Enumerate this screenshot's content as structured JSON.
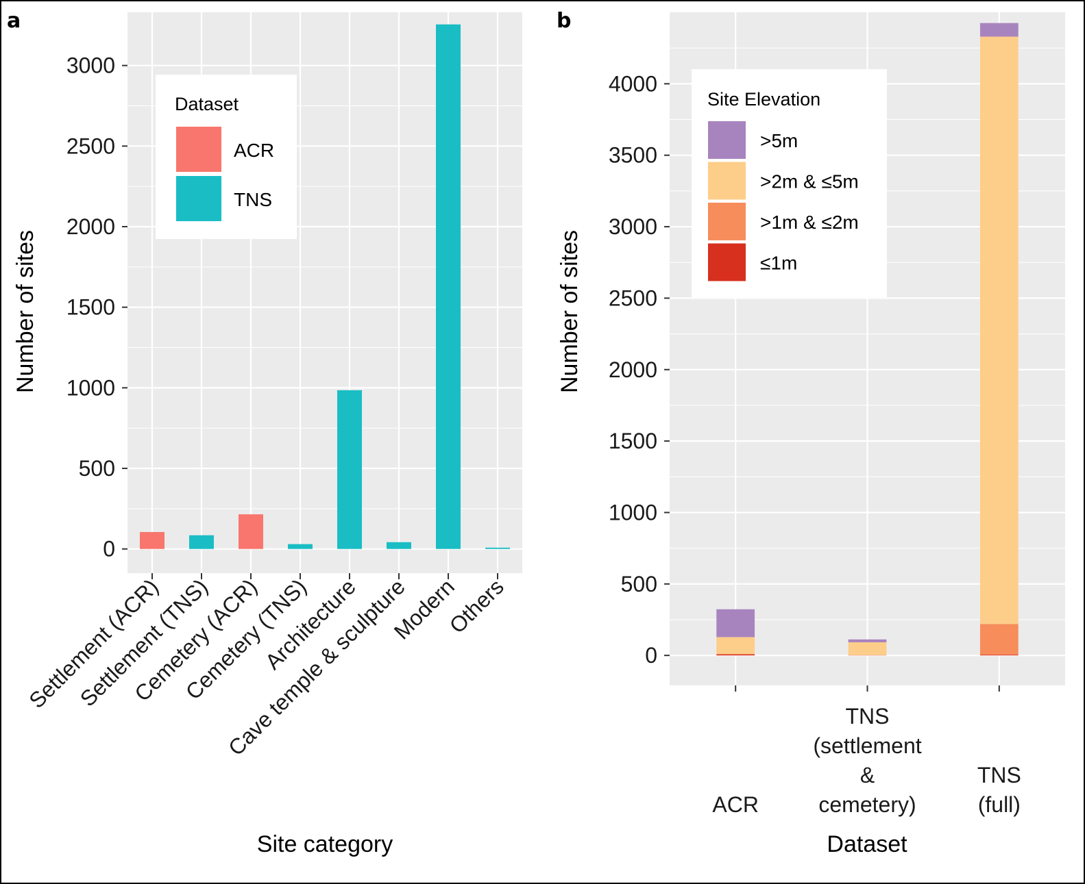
{
  "chart_data": [
    {
      "panel": "a",
      "type": "bar",
      "xlabel": "Site category",
      "ylabel": "Number of sites",
      "ylim": [
        -150,
        3330
      ],
      "yticks": [
        0,
        500,
        1000,
        1500,
        2000,
        2500,
        3000
      ],
      "categories": [
        "Settlement (ACR)",
        "Settlement (TNS)",
        "Cemetery (ACR)",
        "Cemetery (TNS)",
        "Architecture",
        "Cave temple & sculpture",
        "Modern",
        "Others"
      ],
      "values": [
        105,
        85,
        215,
        30,
        985,
        42,
        3255,
        8
      ],
      "datasets": [
        "ACR",
        "TNS",
        "ACR",
        "TNS",
        "TNS",
        "TNS",
        "TNS",
        "TNS"
      ],
      "legend": {
        "title": "Dataset",
        "items": [
          {
            "label": "ACR",
            "color": "#F8766D"
          },
          {
            "label": "TNS",
            "color": "#1ABDC4"
          }
        ]
      }
    },
    {
      "panel": "b",
      "type": "bar",
      "stacked": true,
      "xlabel": "Dataset",
      "ylabel": "Number of sites",
      "ylim": [
        -210,
        4500
      ],
      "yticks": [
        0,
        500,
        1000,
        1500,
        2000,
        2500,
        3000,
        3500,
        4000
      ],
      "categories": [
        {
          "key": "acr",
          "lines": [
            "ACR"
          ]
        },
        {
          "key": "tns_sc",
          "lines": [
            "TNS",
            "(settlement",
            "&",
            "cemetery)"
          ]
        },
        {
          "key": "tns_full",
          "lines": [
            "TNS",
            "(full)"
          ]
        }
      ],
      "series": [
        {
          "name": "≤1m",
          "color": "#D7301F",
          "values": [
            8,
            2,
            5
          ]
        },
        {
          "name": ">1m & ≤2m",
          "color": "#F68D5B",
          "values": [
            0,
            0,
            215
          ]
        },
        {
          "name": ">2m & ≤5m",
          "color": "#FDCD8A",
          "values": [
            120,
            90,
            4110
          ]
        },
        {
          "name": ">5m",
          "color": "#A884BF",
          "values": [
            195,
            20,
            95
          ]
        }
      ],
      "legend": {
        "title": "Site Elevation",
        "order": [
          ">5m",
          ">2m & ≤5m",
          ">1m & ≤2m",
          "≤1m"
        ]
      }
    }
  ]
}
